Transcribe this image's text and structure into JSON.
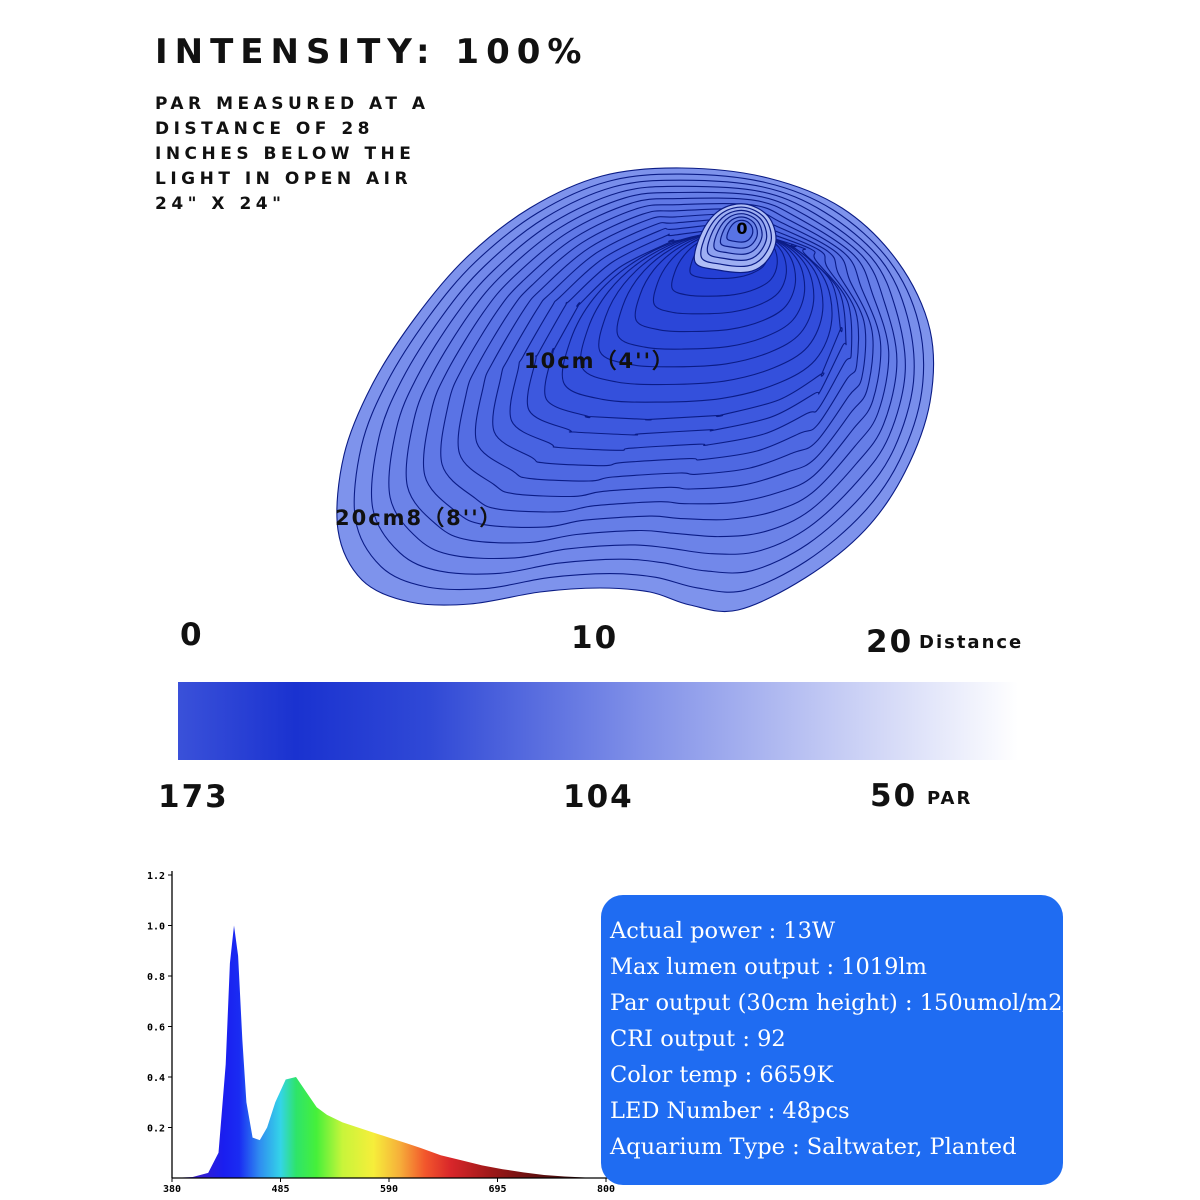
{
  "header": {
    "title": "INTENSITY: 100%",
    "subtitle": "PAR MEASURED AT A\nDISTANCE OF 28\nINCHES BELOW THE\nLIGHT IN OPEN AIR\n24\" X 24\""
  },
  "contour_map": {
    "center_label": "0",
    "label_10": "10cm（4''）",
    "label_20": "20cm8（8''）",
    "colors": {
      "dark": "#1f3ad2",
      "mid": "#3652dd",
      "light": "#7e93ec",
      "line": "#0b1c86"
    }
  },
  "scale": {
    "distance_ticks": [
      "0",
      "10",
      "20"
    ],
    "distance_unit": "Distance",
    "par_ticks": [
      "173",
      "104",
      "50"
    ],
    "par_unit": "PAR"
  },
  "chart_data": {
    "type": "area",
    "title": "",
    "xlabel": "",
    "ylabel": "",
    "x_ticks": [
      380,
      485,
      590,
      695,
      800
    ],
    "y_ticks": [
      0.2,
      0.4,
      0.6,
      0.8,
      1.0,
      1.2
    ],
    "xlim": [
      380,
      800
    ],
    "ylim": [
      0,
      1.2
    ],
    "x": [
      380,
      400,
      415,
      425,
      432,
      436,
      440,
      444,
      448,
      452,
      458,
      465,
      472,
      480,
      490,
      500,
      510,
      520,
      530,
      545,
      560,
      575,
      590,
      605,
      620,
      640,
      660,
      680,
      700,
      720,
      740,
      760,
      780,
      800
    ],
    "values": [
      0,
      0.004,
      0.02,
      0.1,
      0.45,
      0.85,
      1.0,
      0.88,
      0.55,
      0.3,
      0.16,
      0.15,
      0.2,
      0.3,
      0.39,
      0.4,
      0.34,
      0.28,
      0.25,
      0.22,
      0.2,
      0.18,
      0.16,
      0.14,
      0.12,
      0.09,
      0.07,
      0.05,
      0.035,
      0.022,
      0.012,
      0.006,
      0.002,
      0
    ]
  },
  "specs": [
    "Actual power : 13W",
    "Max lumen output : 1019lm",
    "Par output (30cm height) : 150umol/m2/s",
    "CRI output : 92",
    "Color temp : 6659K",
    "LED Number : 48pcs",
    "Aquarium Type : Saltwater, Planted"
  ]
}
